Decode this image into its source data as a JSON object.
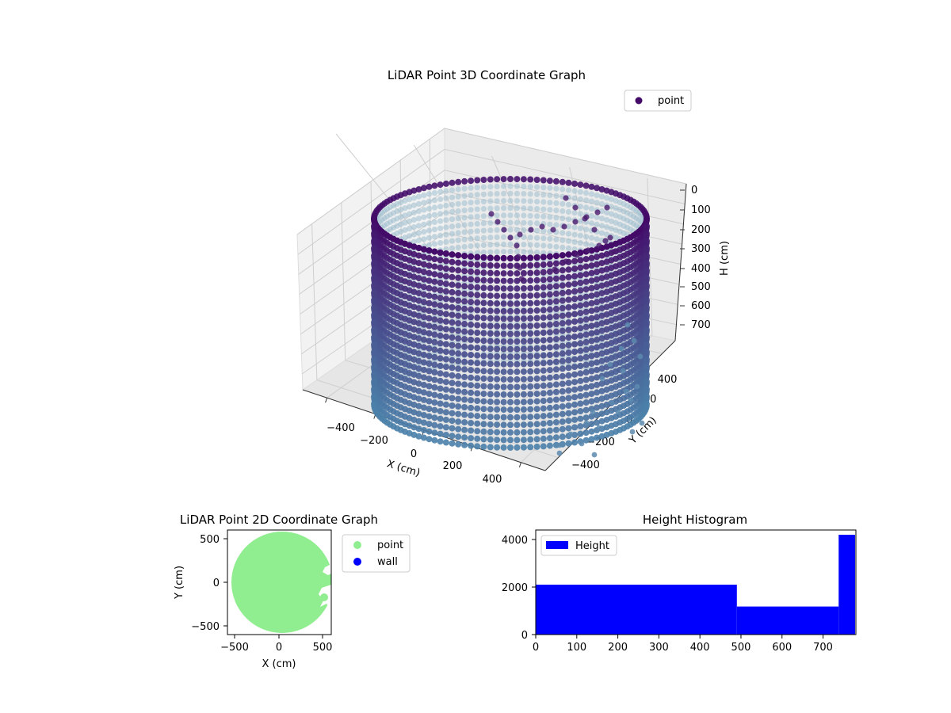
{
  "chart_data": [
    {
      "type": "scatter",
      "projection": "3d",
      "title": "LiDAR Point 3D Coordinate Graph",
      "xlabel": "X (cm)",
      "ylabel": "Y (cm)",
      "zlabel": "H (cm)",
      "xlim": [
        -500,
        500
      ],
      "ylim": [
        -500,
        500
      ],
      "zlim": [
        780,
        0
      ],
      "x_ticks": [
        "−400",
        "−200",
        "0",
        "200",
        "400"
      ],
      "y_ticks": [
        "400",
        "200",
        "0",
        "−200",
        "−400"
      ],
      "z_ticks": [
        "0",
        "100",
        "200",
        "300",
        "400",
        "500",
        "600",
        "700"
      ],
      "grid": true,
      "legend": {
        "placement": "upper-right",
        "entries": [
          "point"
        ]
      },
      "series": [
        {
          "name": "point",
          "shape": "cylindrical wall",
          "radius": 520,
          "height_range": [
            0,
            780
          ],
          "colormap": "viridis-dark (top) to steel-blue (bottom)",
          "color_top": "#440a68",
          "color_bottom": "#4a7fa8"
        }
      ]
    },
    {
      "type": "scatter",
      "title": "LiDAR Point 2D Coordinate Graph",
      "xlabel": "X (cm)",
      "ylabel": "Y (cm)",
      "xlim": [
        -580,
        580
      ],
      "ylim": [
        -580,
        580
      ],
      "x_ticks": [
        "−500",
        "0",
        "500"
      ],
      "y_ticks": [
        "500",
        "0",
        "−500"
      ],
      "legend": {
        "placement": "outside-right",
        "entries": [
          "point",
          "wall"
        ]
      },
      "series": [
        {
          "name": "point",
          "color": "#90ee90",
          "shape": "disc",
          "radius": 540
        },
        {
          "name": "wall",
          "color": "#0000ff",
          "points": []
        }
      ]
    },
    {
      "type": "bar",
      "title": "Height Histogram",
      "xlabel": "",
      "ylabel": "",
      "xlim": [
        0,
        780
      ],
      "ylim": [
        0,
        4400
      ],
      "x_ticks": [
        "0",
        "100",
        "200",
        "300",
        "400",
        "500",
        "600",
        "700"
      ],
      "y_ticks": [
        "0",
        "2000",
        "4000"
      ],
      "legend": {
        "placement": "upper-left",
        "entries": [
          "Height"
        ]
      },
      "series": [
        {
          "name": "Height",
          "color": "#0000ff",
          "bins": [
            {
              "x0": 0,
              "x1": 490,
              "count": 2100
            },
            {
              "x0": 490,
              "x1": 738,
              "count": 1180
            },
            {
              "x0": 738,
              "x1": 778,
              "count": 4200
            }
          ]
        }
      ]
    }
  ]
}
